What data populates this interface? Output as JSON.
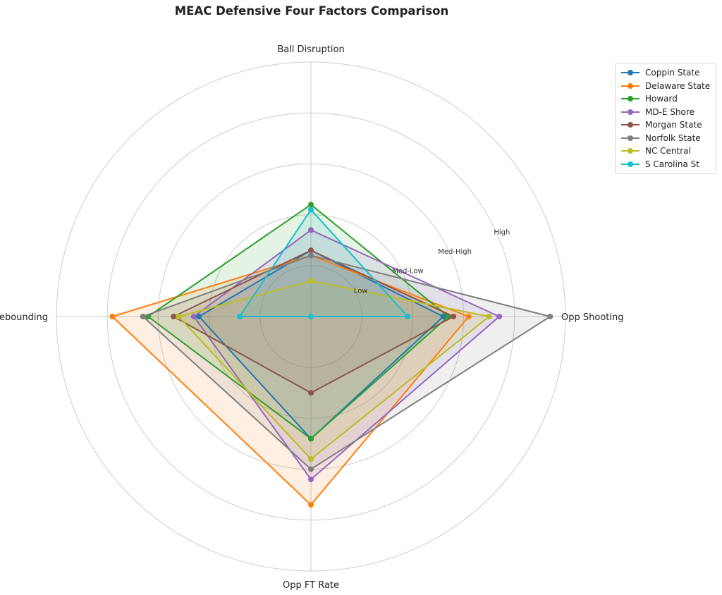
{
  "chart_data": {
    "type": "radar",
    "title": "MEAC Defensive Four Factors Comparison",
    "axes": [
      "Ball Disruption",
      "Opp Shooting",
      "Opp FT Rate",
      "Def Rebounding"
    ],
    "ring_labels": [
      "Low",
      "Med-Low",
      "Med-High",
      "High"
    ],
    "rlim": [
      0,
      5
    ],
    "grid": true,
    "legend_position": "top-right",
    "series": [
      {
        "name": "Coppin State",
        "color": "#1f77b4",
        "values": [
          1.3,
          2.6,
          2.4,
          2.2
        ]
      },
      {
        "name": "Delaware State",
        "color": "#ff7f0e",
        "values": [
          1.2,
          3.1,
          3.7,
          3.9
        ]
      },
      {
        "name": "Howard",
        "color": "#2ca02c",
        "values": [
          2.2,
          2.7,
          2.4,
          3.2
        ]
      },
      {
        "name": "MD-E Shore",
        "color": "#9467bd",
        "values": [
          1.7,
          3.7,
          3.2,
          2.3
        ]
      },
      {
        "name": "Morgan State",
        "color": "#8c564b",
        "values": [
          1.3,
          2.8,
          1.5,
          2.7
        ]
      },
      {
        "name": "Norfolk State",
        "color": "#7f7f7f",
        "values": [
          1.2,
          4.7,
          3.0,
          3.3
        ]
      },
      {
        "name": "NC Central",
        "color": "#bcbd22",
        "values": [
          0.7,
          3.5,
          2.8,
          2.6
        ]
      },
      {
        "name": "S Carolina St",
        "color": "#17becf",
        "values": [
          2.1,
          1.9,
          0.0,
          1.4
        ]
      }
    ]
  }
}
